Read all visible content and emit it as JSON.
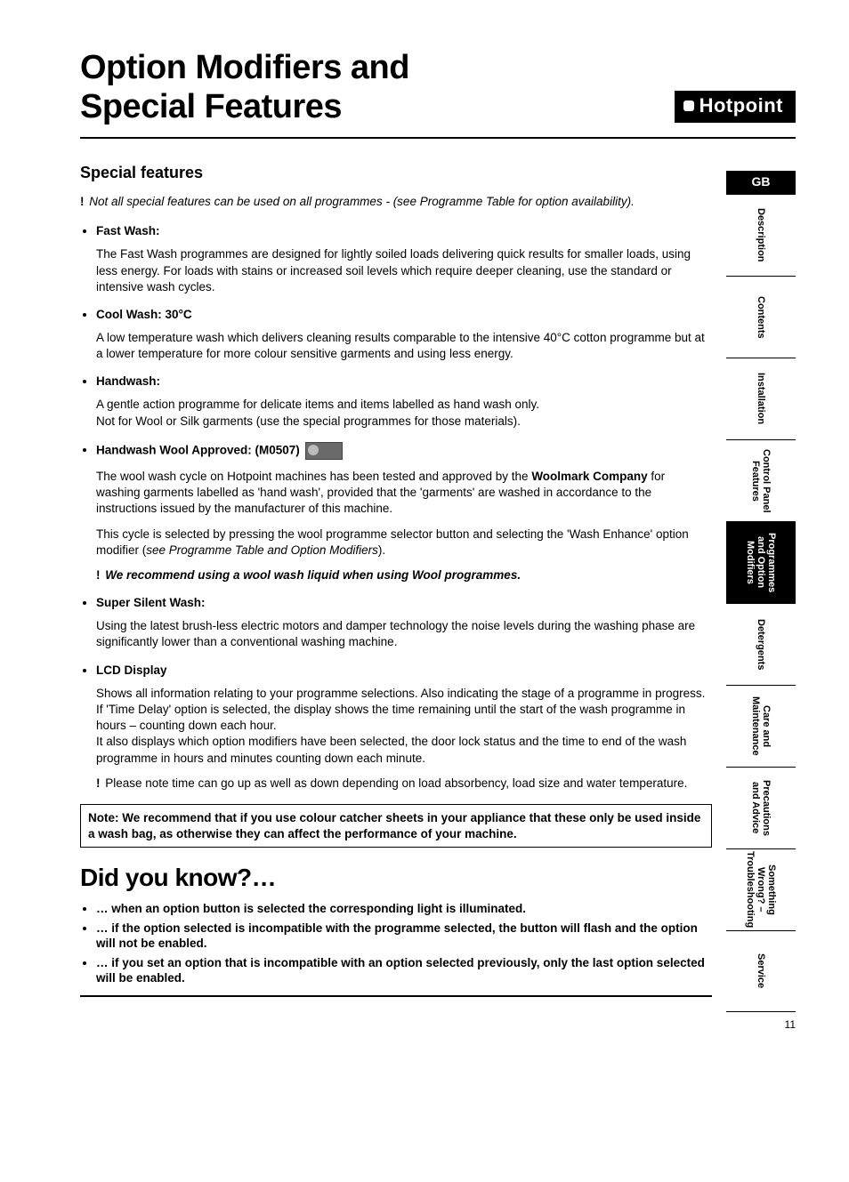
{
  "page_number": "11",
  "header": {
    "title_line1": "Option Modifiers and",
    "title_line2": "Special Features",
    "brand": "Hotpoint"
  },
  "section_title": "Special features",
  "intro_note": "Not all special features can be used on all programmes - (see Programme Table for option availability).",
  "features": [
    {
      "title": "Fast Wash:",
      "paragraphs": [
        "The Fast Wash programmes are designed for lightly soiled loads delivering quick results for smaller loads, using less energy. For loads with stains or increased soil levels which require deeper cleaning, use the standard or intensive wash cycles."
      ]
    },
    {
      "title": "Cool Wash:  30°C",
      "paragraphs": [
        "A low temperature wash which delivers cleaning results comparable to the intensive 40°C cotton programme but at a lower temperature for more colour sensitive garments and using less energy."
      ]
    },
    {
      "title": "Handwash:",
      "paragraphs": [
        "A gentle action programme for delicate items and items labelled as hand wash only.\nNot for Wool or Silk garments (use the special programmes for those materials)."
      ]
    },
    {
      "title": "Handwash Wool Approved: (M0507)",
      "has_badge": true,
      "paragraphs": [
        "The wool wash cycle on Hotpoint machines has been tested and approved by the <b>Woolmark Company</b> for washing garments labelled as 'hand wash', provided that the 'garments' are washed in accordance to the instructions issued by the manufacturer of this machine.",
        "This cycle is selected by pressing the wool programme selector button and selecting the 'Wash Enhance' option modifier (<i>see Programme Table and Option Modifiers</i>)."
      ],
      "note_bold_italic": "We recommend using a wool wash liquid when using Wool programmes."
    },
    {
      "title": "Super Silent Wash:",
      "paragraphs": [
        "Using the latest brush-less electric motors and damper technology the noise levels during the washing phase are significantly lower than a conventional washing machine."
      ]
    },
    {
      "title": "LCD Display",
      "paragraphs": [
        "Shows all information relating to your programme selections. Also indicating the stage of a programme in progress.\nIf 'Time Delay' option is selected, the display shows the time remaining until the start of the wash programme in hours – counting down each hour.\nIt also displays which option modifiers have been selected, the door lock status and the time to end of the wash programme in hours and minutes counting down each minute."
      ],
      "trailing_note": "Please note time can go up as well as down depending on load absorbency, load size and water temperature."
    }
  ],
  "note_box": "Note: We recommend that if you use colour catcher sheets in your appliance that these only be used inside a wash bag, as otherwise they can affect the performance of your machine.",
  "dyk_title": "Did you know?…",
  "dyk_items": [
    "… when an option button is selected the corresponding light is illuminated.",
    "… if the option selected is incompatible with the programme selected, the button will flash and the option will not be enabled.",
    "… if you set an option that is incompatible with an option selected previously, only the last option selected will be enabled."
  ],
  "tabs": [
    {
      "label": "GB",
      "style": "gb"
    },
    {
      "label": "Description"
    },
    {
      "label": "Contents"
    },
    {
      "label": "Installation"
    },
    {
      "label": "Control Panel\nFeatures"
    },
    {
      "label": "Programmes\nand Option\nModifiers",
      "active": true
    },
    {
      "label": "Detergents"
    },
    {
      "label": "Care and\nMaintenance"
    },
    {
      "label": "Precautions\nand Advice"
    },
    {
      "label": "Something\nWrong? –\nTroubleshooting"
    },
    {
      "label": "Service"
    }
  ],
  "colors": {
    "text": "#000000",
    "background": "#ffffff",
    "tab_active_bg": "#000000",
    "tab_active_fg": "#ffffff"
  }
}
